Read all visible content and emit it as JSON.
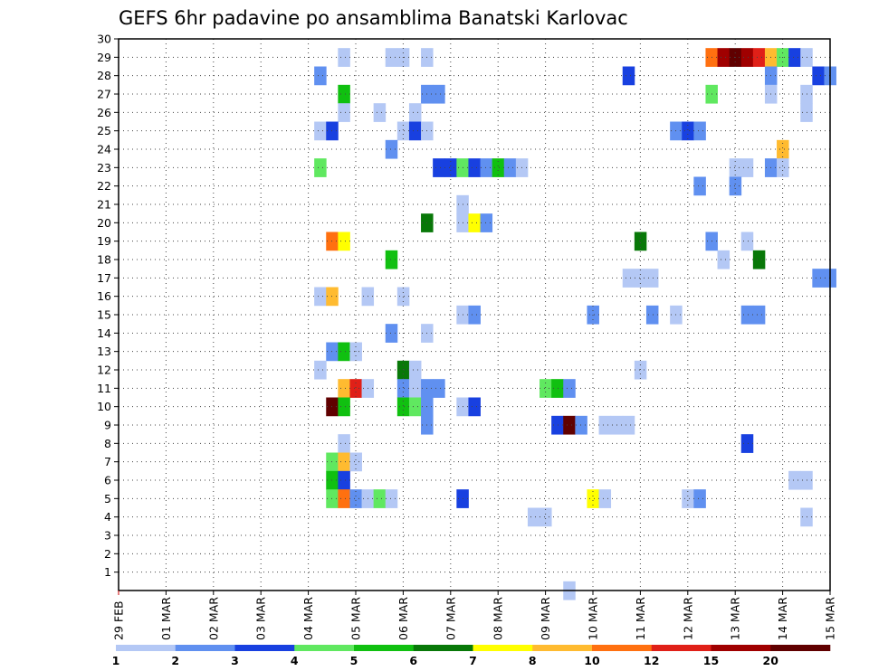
{
  "chart_data": {
    "type": "heatmap",
    "title": "GEFS 6hr padavine po ansamblima Banatski Karlovac",
    "xlabel": "",
    "ylabel": "",
    "x_unit": "6-hour step (0 = 29 FEB 00Z)",
    "x_range": [
      0,
      60
    ],
    "x_ticks": [
      {
        "step": 0,
        "label": "29 FEB"
      },
      {
        "step": 4,
        "label": "01 MAR"
      },
      {
        "step": 8,
        "label": "02 MAR"
      },
      {
        "step": 12,
        "label": "03 MAR"
      },
      {
        "step": 16,
        "label": "04 MAR"
      },
      {
        "step": 20,
        "label": "05 MAR"
      },
      {
        "step": 24,
        "label": "06 MAR"
      },
      {
        "step": 28,
        "label": "07 MAR"
      },
      {
        "step": 32,
        "label": "08 MAR"
      },
      {
        "step": 36,
        "label": "09 MAR"
      },
      {
        "step": 40,
        "label": "10 MAR"
      },
      {
        "step": 44,
        "label": "11 MAR"
      },
      {
        "step": 48,
        "label": "12 MAR"
      },
      {
        "step": 52,
        "label": "13 MAR"
      },
      {
        "step": 56,
        "label": "14 MAR"
      },
      {
        "step": 60,
        "label": "15 MAR"
      }
    ],
    "y_range": [
      0,
      30
    ],
    "y_ticks": [
      "1",
      "2",
      "3",
      "4",
      "5",
      "6",
      "7",
      "8",
      "9",
      "10",
      "11",
      "12",
      "13",
      "14",
      "15",
      "16",
      "17",
      "18",
      "19",
      "20",
      "21",
      "22",
      "23",
      "24",
      "25",
      "26",
      "27",
      "28",
      "29",
      "30"
    ],
    "grid": true,
    "legend_position": "bottom",
    "colorbar": {
      "colors": [
        "#b4c8f5",
        "#6090f0",
        "#1840e0",
        "#60e860",
        "#10c010",
        "#087808",
        "#ffff00",
        "#ffbb30",
        "#ff7010",
        "#e02018",
        "#a00000",
        "#600000"
      ],
      "labels": [
        "1",
        "2",
        "3",
        "4",
        "5",
        "6",
        "7",
        "8",
        "10",
        "12",
        "15",
        "20"
      ]
    },
    "cells": [
      {
        "s": 19,
        "m": 29,
        "c": 0
      },
      {
        "s": 23,
        "m": 29,
        "c": 0
      },
      {
        "s": 24,
        "m": 29,
        "c": 0
      },
      {
        "s": 26,
        "m": 29,
        "c": 0
      },
      {
        "s": 50,
        "m": 29,
        "c": 8
      },
      {
        "s": 51,
        "m": 29,
        "c": 10
      },
      {
        "s": 52,
        "m": 29,
        "c": 11
      },
      {
        "s": 53,
        "m": 29,
        "c": 10
      },
      {
        "s": 54,
        "m": 29,
        "c": 9
      },
      {
        "s": 55,
        "m": 29,
        "c": 7
      },
      {
        "s": 56,
        "m": 29,
        "c": 3
      },
      {
        "s": 57,
        "m": 29,
        "c": 2
      },
      {
        "s": 58,
        "m": 29,
        "c": 0
      },
      {
        "s": 17,
        "m": 28,
        "c": 1
      },
      {
        "s": 43,
        "m": 28,
        "c": 2
      },
      {
        "s": 55,
        "m": 28,
        "c": 1
      },
      {
        "s": 59,
        "m": 28,
        "c": 2
      },
      {
        "s": 60,
        "m": 28,
        "c": 1
      },
      {
        "s": 19,
        "m": 27,
        "c": 4
      },
      {
        "s": 26,
        "m": 27,
        "c": 1
      },
      {
        "s": 27,
        "m": 27,
        "c": 1
      },
      {
        "s": 50,
        "m": 27,
        "c": 3
      },
      {
        "s": 55,
        "m": 27,
        "c": 0
      },
      {
        "s": 58,
        "m": 27,
        "c": 0
      },
      {
        "s": 19,
        "m": 26,
        "c": 0
      },
      {
        "s": 22,
        "m": 26,
        "c": 0
      },
      {
        "s": 25,
        "m": 26,
        "c": 0
      },
      {
        "s": 58,
        "m": 26,
        "c": 0
      },
      {
        "s": 17,
        "m": 25,
        "c": 0
      },
      {
        "s": 18,
        "m": 25,
        "c": 2
      },
      {
        "s": 24,
        "m": 25,
        "c": 0
      },
      {
        "s": 25,
        "m": 25,
        "c": 2
      },
      {
        "s": 26,
        "m": 25,
        "c": 0
      },
      {
        "s": 47,
        "m": 25,
        "c": 1
      },
      {
        "s": 48,
        "m": 25,
        "c": 2
      },
      {
        "s": 49,
        "m": 25,
        "c": 1
      },
      {
        "s": 23,
        "m": 24,
        "c": 1
      },
      {
        "s": 56,
        "m": 24,
        "c": 7
      },
      {
        "s": 17,
        "m": 23,
        "c": 3
      },
      {
        "s": 27,
        "m": 23,
        "c": 2
      },
      {
        "s": 28,
        "m": 23,
        "c": 2
      },
      {
        "s": 29,
        "m": 23,
        "c": 3
      },
      {
        "s": 30,
        "m": 23,
        "c": 2
      },
      {
        "s": 31,
        "m": 23,
        "c": 1
      },
      {
        "s": 32,
        "m": 23,
        "c": 4
      },
      {
        "s": 33,
        "m": 23,
        "c": 1
      },
      {
        "s": 34,
        "m": 23,
        "c": 0
      },
      {
        "s": 52,
        "m": 23,
        "c": 0
      },
      {
        "s": 53,
        "m": 23,
        "c": 0
      },
      {
        "s": 55,
        "m": 23,
        "c": 1
      },
      {
        "s": 56,
        "m": 23,
        "c": 0
      },
      {
        "s": 49,
        "m": 22,
        "c": 1
      },
      {
        "s": 52,
        "m": 22,
        "c": 1
      },
      {
        "s": 29,
        "m": 21,
        "c": 0
      },
      {
        "s": 26,
        "m": 20,
        "c": 5
      },
      {
        "s": 29,
        "m": 20,
        "c": 0
      },
      {
        "s": 30,
        "m": 20,
        "c": 6
      },
      {
        "s": 31,
        "m": 20,
        "c": 1
      },
      {
        "s": 18,
        "m": 19,
        "c": 8
      },
      {
        "s": 19,
        "m": 19,
        "c": 6
      },
      {
        "s": 44,
        "m": 19,
        "c": 5
      },
      {
        "s": 50,
        "m": 19,
        "c": 1
      },
      {
        "s": 53,
        "m": 19,
        "c": 0
      },
      {
        "s": 23,
        "m": 18,
        "c": 4
      },
      {
        "s": 51,
        "m": 18,
        "c": 0
      },
      {
        "s": 54,
        "m": 18,
        "c": 5
      },
      {
        "s": 43,
        "m": 17,
        "c": 0
      },
      {
        "s": 44,
        "m": 17,
        "c": 0
      },
      {
        "s": 45,
        "m": 17,
        "c": 0
      },
      {
        "s": 59,
        "m": 17,
        "c": 1
      },
      {
        "s": 60,
        "m": 17,
        "c": 1
      },
      {
        "s": 17,
        "m": 16,
        "c": 0
      },
      {
        "s": 18,
        "m": 16,
        "c": 7
      },
      {
        "s": 21,
        "m": 16,
        "c": 0
      },
      {
        "s": 24,
        "m": 16,
        "c": 0
      },
      {
        "s": 29,
        "m": 15,
        "c": 0
      },
      {
        "s": 30,
        "m": 15,
        "c": 1
      },
      {
        "s": 40,
        "m": 15,
        "c": 1
      },
      {
        "s": 45,
        "m": 15,
        "c": 1
      },
      {
        "s": 47,
        "m": 15,
        "c": 0
      },
      {
        "s": 53,
        "m": 15,
        "c": 1
      },
      {
        "s": 54,
        "m": 15,
        "c": 1
      },
      {
        "s": 23,
        "m": 14,
        "c": 1
      },
      {
        "s": 26,
        "m": 14,
        "c": 0
      },
      {
        "s": 18,
        "m": 13,
        "c": 1
      },
      {
        "s": 19,
        "m": 13,
        "c": 4
      },
      {
        "s": 20,
        "m": 13,
        "c": 0
      },
      {
        "s": 17,
        "m": 12,
        "c": 0
      },
      {
        "s": 24,
        "m": 12,
        "c": 5
      },
      {
        "s": 25,
        "m": 12,
        "c": 0
      },
      {
        "s": 44,
        "m": 12,
        "c": 0
      },
      {
        "s": 19,
        "m": 11,
        "c": 7
      },
      {
        "s": 20,
        "m": 11,
        "c": 9
      },
      {
        "s": 21,
        "m": 11,
        "c": 0
      },
      {
        "s": 24,
        "m": 11,
        "c": 1
      },
      {
        "s": 25,
        "m": 11,
        "c": 0
      },
      {
        "s": 26,
        "m": 11,
        "c": 1
      },
      {
        "s": 27,
        "m": 11,
        "c": 1
      },
      {
        "s": 36,
        "m": 11,
        "c": 3
      },
      {
        "s": 37,
        "m": 11,
        "c": 4
      },
      {
        "s": 38,
        "m": 11,
        "c": 1
      },
      {
        "s": 18,
        "m": 10,
        "c": 11
      },
      {
        "s": 19,
        "m": 10,
        "c": 4
      },
      {
        "s": 24,
        "m": 10,
        "c": 4
      },
      {
        "s": 25,
        "m": 10,
        "c": 3
      },
      {
        "s": 26,
        "m": 10,
        "c": 1
      },
      {
        "s": 29,
        "m": 10,
        "c": 0
      },
      {
        "s": 30,
        "m": 10,
        "c": 2
      },
      {
        "s": 26,
        "m": 9,
        "c": 1
      },
      {
        "s": 37,
        "m": 9,
        "c": 2
      },
      {
        "s": 38,
        "m": 9,
        "c": 11
      },
      {
        "s": 39,
        "m": 9,
        "c": 1
      },
      {
        "s": 41,
        "m": 9,
        "c": 0
      },
      {
        "s": 42,
        "m": 9,
        "c": 0
      },
      {
        "s": 43,
        "m": 9,
        "c": 0
      },
      {
        "s": 19,
        "m": 8,
        "c": 0
      },
      {
        "s": 53,
        "m": 8,
        "c": 2
      },
      {
        "s": 18,
        "m": 7,
        "c": 3
      },
      {
        "s": 19,
        "m": 7,
        "c": 7
      },
      {
        "s": 20,
        "m": 7,
        "c": 0
      },
      {
        "s": 18,
        "m": 6,
        "c": 4
      },
      {
        "s": 19,
        "m": 6,
        "c": 2
      },
      {
        "s": 57,
        "m": 6,
        "c": 0
      },
      {
        "s": 58,
        "m": 6,
        "c": 0
      },
      {
        "s": 18,
        "m": 5,
        "c": 3
      },
      {
        "s": 19,
        "m": 5,
        "c": 8
      },
      {
        "s": 20,
        "m": 5,
        "c": 1
      },
      {
        "s": 21,
        "m": 5,
        "c": 0
      },
      {
        "s": 22,
        "m": 5,
        "c": 3
      },
      {
        "s": 23,
        "m": 5,
        "c": 0
      },
      {
        "s": 29,
        "m": 5,
        "c": 2
      },
      {
        "s": 40,
        "m": 5,
        "c": 6
      },
      {
        "s": 41,
        "m": 5,
        "c": 0
      },
      {
        "s": 48,
        "m": 5,
        "c": 0
      },
      {
        "s": 49,
        "m": 5,
        "c": 1
      },
      {
        "s": 35,
        "m": 4,
        "c": 0
      },
      {
        "s": 36,
        "m": 4,
        "c": 0
      },
      {
        "s": 58,
        "m": 4,
        "c": 0
      },
      {
        "s": 38,
        "m": 0,
        "c": 0
      }
    ]
  }
}
